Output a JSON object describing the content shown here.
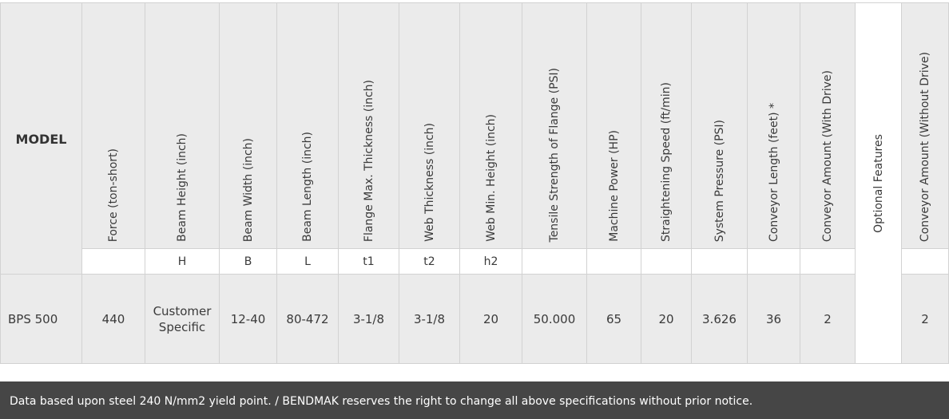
{
  "table": {
    "model_header": "MODEL",
    "columns": [
      {
        "header": "Force (ton-short)",
        "symbol": "",
        "value": "440"
      },
      {
        "header": "Beam Height (inch)",
        "symbol": "H",
        "value_line1": "Customer",
        "value_line2": "Specific"
      },
      {
        "header": "Beam Width (inch)",
        "symbol": "B",
        "value": "12-40"
      },
      {
        "header": "Beam Length (inch)",
        "symbol": "L",
        "value": "80-472"
      },
      {
        "header": "Flange Max. Thickness (inch)",
        "symbol": "t1",
        "value": "3-1/8"
      },
      {
        "header": "Web Thickness (inch)",
        "symbol": "t2",
        "value": "3-1/8"
      },
      {
        "header": "Web Min. Height (inch)",
        "symbol": "h2",
        "value": "20"
      },
      {
        "header": "Tensile Strength of Flange (PSI)",
        "symbol": "",
        "value": "50.000"
      },
      {
        "header": "Machine Power (HP)",
        "symbol": "",
        "value": "65"
      },
      {
        "header": "Straightening Speed  (ft/min)",
        "symbol": "",
        "value": "20"
      },
      {
        "header": "System Pressure (PSI)",
        "symbol": "",
        "value": "3.626"
      },
      {
        "header": "Conveyor Length (feet) *",
        "symbol": "",
        "value": "36"
      },
      {
        "header": "Conveyor Amount (With Drive)",
        "symbol": "",
        "value": "2"
      },
      {
        "header": "Optional Features",
        "symbol": "",
        "value": ""
      },
      {
        "header": "Conveyor Amount (Without Drive)",
        "symbol": "",
        "value": "2"
      }
    ],
    "model_value": "BPS 500"
  },
  "footer": {
    "note": "Data based upon steel 240 N/mm2 yield point. / BENDMAK reserves the right to change all above specifications without prior notice."
  }
}
